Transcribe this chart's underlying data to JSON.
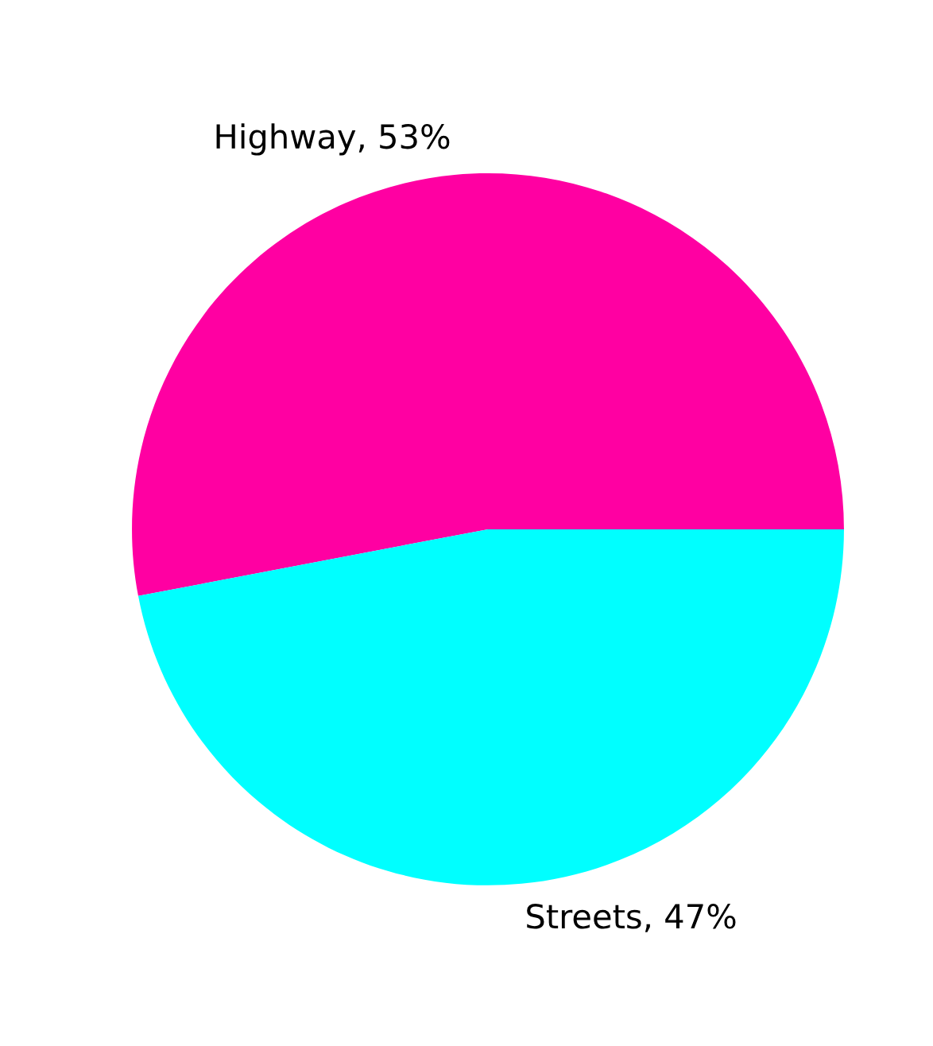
{
  "chart_data": {
    "type": "pie",
    "categories": [
      "Highway, 53%",
      "Streets, 47%"
    ],
    "values": [
      53,
      47
    ],
    "colors": [
      "#ff00a2",
      "#00ffff"
    ]
  }
}
